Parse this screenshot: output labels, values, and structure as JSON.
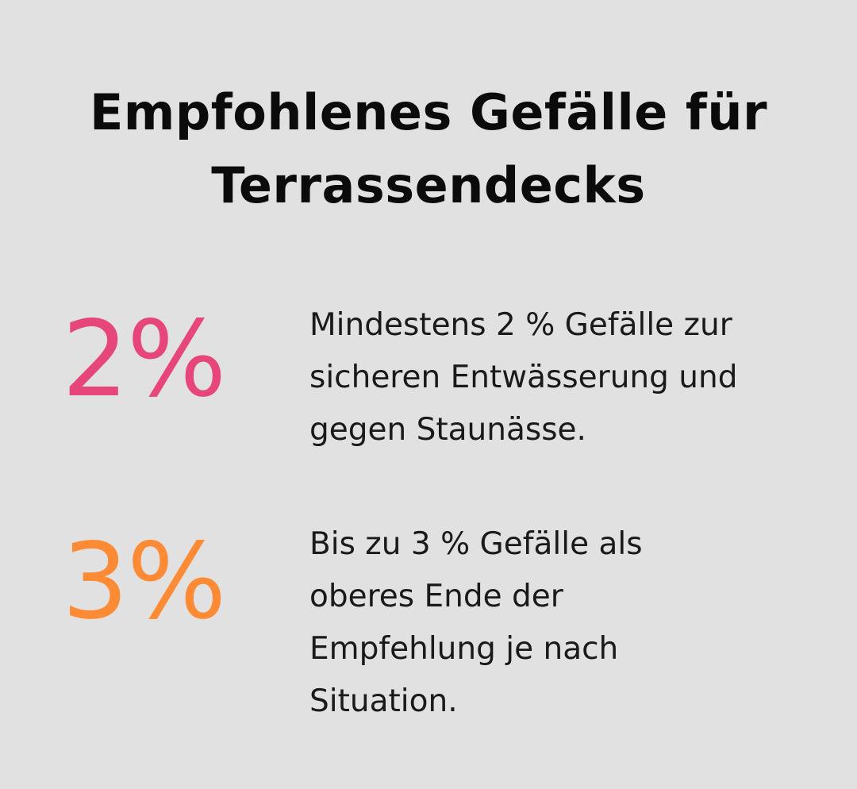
{
  "title": {
    "line1": "Empfohlenes Gefälle für",
    "line2": "Terrassendecks"
  },
  "stats": [
    {
      "value": "2%",
      "color": "#e6467a",
      "lines": [
        "Mindestens 2 % Gefälle zur",
        "sicheren Entwässerung und",
        "gegen Staunässe."
      ]
    },
    {
      "value": "3%",
      "color": "#fd8b35",
      "lines": [
        "Bis zu 3 % Gefälle als",
        "oberes Ende der",
        "Empfehlung je nach",
        "Situation."
      ]
    }
  ],
  "colors": {
    "background": "#e0e1e0",
    "title": "#0b0b0b",
    "text": "#1a1a1a"
  }
}
